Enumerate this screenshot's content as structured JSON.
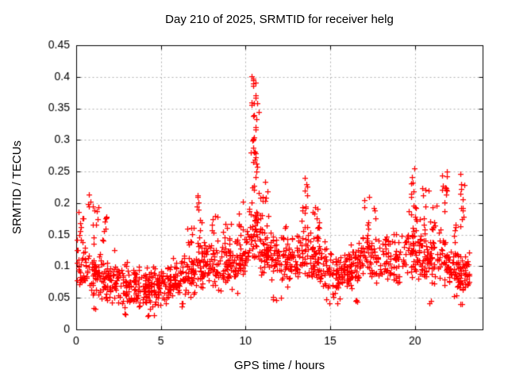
{
  "chart_data": {
    "type": "scatter",
    "title": "Day 210 of 2025, SRMTID for receiver helg",
    "xlabel": "GPS time / hours",
    "ylabel": "SRMTID / TECUs",
    "xlim": [
      0,
      24
    ],
    "ylim": [
      0,
      0.45
    ],
    "xticks": {
      "values": [
        0,
        5,
        10,
        15,
        20
      ],
      "labels": [
        "0",
        "5",
        "10",
        "15",
        "20"
      ]
    },
    "yticks": {
      "values": [
        0,
        0.05,
        0.1,
        0.15,
        0.2,
        0.25,
        0.3,
        0.35,
        0.4,
        0.45
      ],
      "labels": [
        "0",
        "0.05",
        "0.1",
        "0.15",
        "0.2",
        "0.25",
        "0.3",
        "0.35",
        "0.4",
        "0.45"
      ]
    },
    "grid": {
      "on": true,
      "color": "#b0b0b0",
      "dash": [
        2,
        3
      ]
    },
    "border_color": "#000000",
    "background": "#ffffff",
    "marker": {
      "shape": "plus",
      "color": "#ff0000",
      "size": 7,
      "line_width": 1.25
    },
    "legend": null,
    "point_cloud": {
      "seed": 42,
      "n_base": 1450,
      "x_range": [
        0.02,
        23.25
      ],
      "spread_mult": 1.5,
      "upper_tail": {
        "p": 0.05,
        "max": 0.05
      },
      "lower_tail": {
        "p": 0.02,
        "max": 0.03
      },
      "v_min": 0.015,
      "median_curve": [
        [
          0,
          0.092
        ],
        [
          0.5,
          0.09
        ],
        [
          1,
          0.088
        ],
        [
          1.5,
          0.082
        ],
        [
          2,
          0.076
        ],
        [
          2.5,
          0.073
        ],
        [
          3,
          0.075
        ],
        [
          3.5,
          0.072
        ],
        [
          4,
          0.068
        ],
        [
          4.5,
          0.065
        ],
        [
          5,
          0.072
        ],
        [
          5.5,
          0.075
        ],
        [
          6,
          0.078
        ],
        [
          6.5,
          0.082
        ],
        [
          7,
          0.092
        ],
        [
          7.5,
          0.1
        ],
        [
          8,
          0.095
        ],
        [
          8.5,
          0.09
        ],
        [
          9,
          0.1
        ],
        [
          9.5,
          0.105
        ],
        [
          10,
          0.115
        ],
        [
          10.5,
          0.14
        ],
        [
          11,
          0.125
        ],
        [
          11.5,
          0.118
        ],
        [
          12,
          0.112
        ],
        [
          12.5,
          0.108
        ],
        [
          13,
          0.108
        ],
        [
          13.5,
          0.125
        ],
        [
          14,
          0.115
        ],
        [
          14.5,
          0.1
        ],
        [
          15,
          0.09
        ],
        [
          15.5,
          0.085
        ],
        [
          16,
          0.095
        ],
        [
          16.5,
          0.105
        ],
        [
          17,
          0.115
        ],
        [
          17.5,
          0.108
        ],
        [
          18,
          0.112
        ],
        [
          18.5,
          0.118
        ],
        [
          19,
          0.115
        ],
        [
          19.5,
          0.118
        ],
        [
          20,
          0.122
        ],
        [
          20.5,
          0.118
        ],
        [
          21,
          0.112
        ],
        [
          21.5,
          0.115
        ],
        [
          22,
          0.098
        ],
        [
          22.5,
          0.09
        ],
        [
          23,
          0.086
        ],
        [
          23.3,
          0.085
        ]
      ],
      "halfwidth_curve": [
        [
          0,
          0.03
        ],
        [
          2,
          0.024
        ],
        [
          4,
          0.024
        ],
        [
          6,
          0.026
        ],
        [
          8,
          0.028
        ],
        [
          10,
          0.03
        ],
        [
          12,
          0.03
        ],
        [
          14,
          0.03
        ],
        [
          16,
          0.028
        ],
        [
          18,
          0.028
        ],
        [
          20,
          0.03
        ],
        [
          22,
          0.026
        ],
        [
          23.3,
          0.024
        ]
      ],
      "bursts": [
        [
          0.03,
          0.45,
          10,
          0.135,
          0.2
        ],
        [
          0.6,
          0.85,
          4,
          0.19,
          0.235
        ],
        [
          0.95,
          1.35,
          9,
          0.13,
          0.195
        ],
        [
          1.5,
          1.8,
          8,
          0.125,
          0.185
        ],
        [
          6.55,
          6.95,
          8,
          0.125,
          0.172
        ],
        [
          7.05,
          7.4,
          12,
          0.125,
          0.215
        ],
        [
          7.9,
          8.35,
          9,
          0.125,
          0.185
        ],
        [
          8.75,
          9.2,
          8,
          0.12,
          0.168
        ],
        [
          9.5,
          10.15,
          8,
          0.13,
          0.205
        ],
        [
          10.15,
          10.35,
          6,
          0.14,
          0.22
        ],
        [
          10.25,
          10.55,
          8,
          0.355,
          0.405
        ],
        [
          10.5,
          10.78,
          10,
          0.3,
          0.398
        ],
        [
          10.3,
          10.62,
          8,
          0.265,
          0.345
        ],
        [
          10.35,
          10.78,
          10,
          0.215,
          0.3
        ],
        [
          10.45,
          10.9,
          12,
          0.165,
          0.25
        ],
        [
          10.6,
          11.05,
          10,
          0.14,
          0.21
        ],
        [
          10.95,
          11.35,
          8,
          0.15,
          0.238
        ],
        [
          12.2,
          12.55,
          6,
          0.125,
          0.172
        ],
        [
          13.3,
          13.65,
          13,
          0.13,
          0.248
        ],
        [
          13.9,
          14.35,
          10,
          0.125,
          0.198
        ],
        [
          16.85,
          17.3,
          10,
          0.135,
          0.21
        ],
        [
          17.55,
          17.75,
          3,
          0.155,
          0.195
        ],
        [
          18.2,
          18.45,
          4,
          0.13,
          0.165
        ],
        [
          19.55,
          19.95,
          10,
          0.17,
          0.256
        ],
        [
          19.9,
          20.35,
          8,
          0.15,
          0.2
        ],
        [
          20.45,
          20.85,
          8,
          0.145,
          0.225
        ],
        [
          20.9,
          21.3,
          8,
          0.15,
          0.21
        ],
        [
          21.5,
          21.9,
          12,
          0.16,
          0.25
        ],
        [
          22.25,
          22.5,
          5,
          0.135,
          0.19
        ],
        [
          22.6,
          22.95,
          12,
          0.15,
          0.252
        ],
        [
          0.9,
          1.3,
          2,
          0.025,
          0.04
        ],
        [
          2.7,
          3.05,
          3,
          0.024,
          0.042
        ],
        [
          4.1,
          4.65,
          5,
          0.018,
          0.048
        ],
        [
          6.15,
          6.45,
          3,
          0.03,
          0.045
        ],
        [
          11.3,
          12.1,
          4,
          0.045,
          0.058
        ],
        [
          14.75,
          15.55,
          5,
          0.038,
          0.056
        ],
        [
          16.45,
          16.85,
          3,
          0.042,
          0.058
        ],
        [
          20.85,
          21.1,
          2,
          0.042,
          0.055
        ],
        [
          22.3,
          22.95,
          4,
          0.04,
          0.055
        ]
      ]
    }
  }
}
